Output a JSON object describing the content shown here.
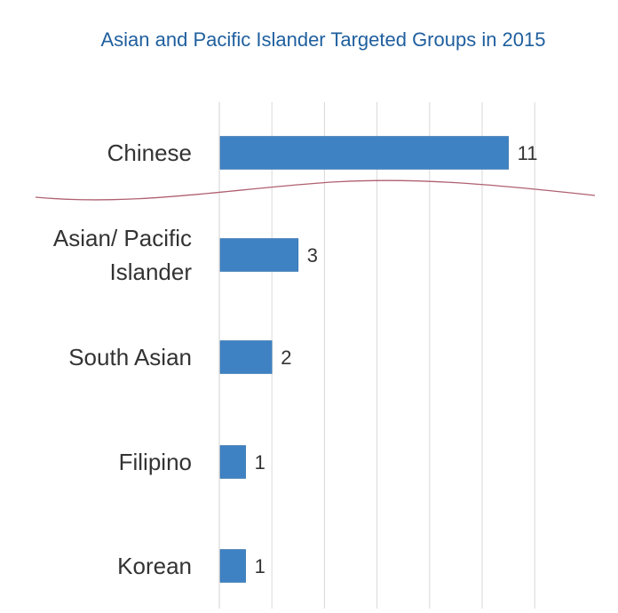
{
  "chart_data": {
    "type": "bar",
    "orientation": "horizontal",
    "title": "Asian and Pacific Islander Targeted Groups in 2015",
    "categories": [
      "Chinese",
      "Asian/ Pacific Islander",
      "South Asian",
      "Filipino",
      "Korean"
    ],
    "category_lines": [
      [
        "Chinese"
      ],
      [
        "Asian/ Pacific",
        "Islander"
      ],
      [
        "South Asian"
      ],
      [
        "Filipino"
      ],
      [
        "Korean"
      ]
    ],
    "values": [
      11,
      3,
      2,
      1,
      1
    ],
    "data_labels": [
      "11",
      "3",
      "2",
      "1",
      "1"
    ],
    "xlim": [
      0,
      12
    ],
    "grid": true,
    "legend": "none",
    "colors": {
      "bar": "#3f82c4",
      "bar_edge": "#2f6ea8",
      "title": "#1f5f9e",
      "label": "#333333",
      "grid": "#d9d9d9",
      "annotation_line": "#b06070"
    }
  }
}
